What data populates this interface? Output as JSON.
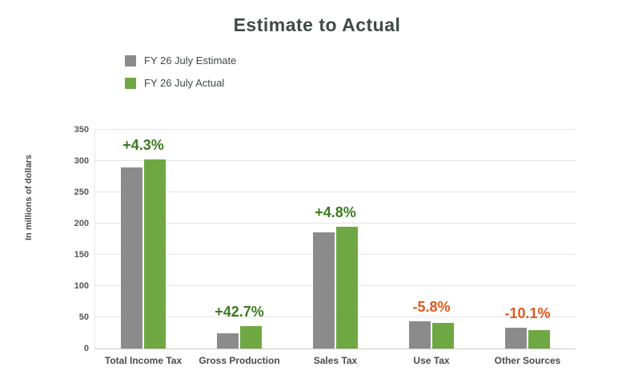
{
  "title": "Estimate to Actual",
  "legend": {
    "items": [
      {
        "label": "FY 26 July Estimate",
        "color": "#8b8b8b"
      },
      {
        "label": "FY 26 July Actual",
        "color": "#6fa843"
      }
    ]
  },
  "colors": {
    "positive_annotation": "#3b7a20",
    "negative_annotation": "#e2571b",
    "estimate_bar": "#8b8b8b",
    "actual_bar": "#6fa843"
  },
  "chart_data": {
    "type": "bar",
    "categories": [
      "Total Income Tax",
      "Gross Production",
      "Sales Tax",
      "Use Tax",
      "Other Sources"
    ],
    "series": [
      {
        "name": "FY 26 July Estimate",
        "color": "#8b8b8b",
        "values": [
          290,
          25,
          186,
          43,
          33
        ]
      },
      {
        "name": "FY 26 July Actual",
        "color": "#6fa843",
        "values": [
          302,
          36,
          195,
          41,
          30
        ]
      }
    ],
    "annotations": [
      {
        "label": "+4.3%",
        "color": "#3b7a20"
      },
      {
        "label": "+42.7%",
        "color": "#3b7a20"
      },
      {
        "label": "+4.8%",
        "color": "#3b7a20"
      },
      {
        "label": "-5.8%",
        "color": "#e2571b"
      },
      {
        "label": "-10.1%",
        "color": "#e2571b"
      }
    ],
    "title": "Estimate to Actual",
    "xlabel": "",
    "ylabel": "In millions of dollars",
    "ylim": [
      0,
      350
    ],
    "yticks": [
      0,
      50,
      100,
      150,
      200,
      250,
      300,
      350
    ],
    "grid": true,
    "legend_position": "top-left"
  }
}
